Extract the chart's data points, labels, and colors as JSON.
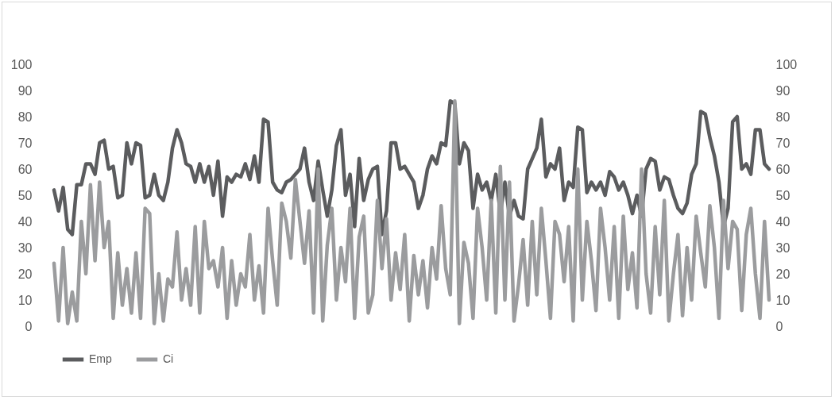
{
  "chart_data": {
    "type": "line",
    "categories": [
      null,
      null,
      null,
      null,
      null,
      null,
      null,
      null,
      null,
      null,
      null,
      null,
      null,
      null,
      null,
      null,
      null,
      null,
      null,
      null,
      null,
      null,
      null,
      null,
      null,
      null,
      null,
      null,
      null,
      null,
      null,
      null,
      null,
      null,
      null,
      null,
      null,
      null,
      null,
      null,
      null,
      null,
      null,
      null,
      null,
      null,
      null,
      null,
      null,
      null,
      null,
      null,
      null,
      null,
      null,
      null,
      null,
      null,
      null,
      null,
      null,
      null,
      null,
      null,
      null,
      null,
      null,
      null,
      null,
      null,
      null,
      null,
      null,
      null,
      null,
      null,
      null,
      null,
      null,
      null,
      null,
      null,
      null,
      null,
      null,
      null,
      null,
      null,
      null,
      null,
      null,
      null,
      null,
      null,
      null,
      null,
      null,
      null,
      null,
      null,
      null,
      null,
      null,
      null,
      null,
      null,
      null,
      null,
      null,
      null,
      null,
      null,
      null,
      null,
      null,
      null,
      null,
      null,
      null,
      null,
      null,
      null,
      null,
      null,
      null,
      null,
      null,
      null,
      null,
      null,
      null,
      null,
      null,
      null,
      null,
      null,
      null,
      null,
      null,
      null,
      null,
      null,
      null,
      null,
      null,
      null,
      null,
      null,
      null,
      null,
      null,
      null,
      null,
      null,
      null,
      null,
      null,
      null
    ],
    "series": [
      {
        "name": "Emp",
        "color": "#5b5c5e",
        "values": [
          52,
          44,
          53,
          37,
          35,
          54,
          54,
          62,
          62,
          58,
          70,
          71,
          60,
          61,
          49,
          50,
          70,
          62,
          70,
          69,
          49,
          50,
          58,
          50,
          48,
          55,
          68,
          75,
          70,
          62,
          61,
          55,
          62,
          55,
          61,
          50,
          63,
          42,
          57,
          55,
          58,
          57,
          62,
          56,
          65,
          55,
          79,
          78,
          55,
          52,
          51,
          55,
          56,
          58,
          60,
          68,
          55,
          48,
          63,
          52,
          42,
          52,
          69,
          75,
          50,
          58,
          38,
          64,
          48,
          56,
          60,
          61,
          35,
          44,
          70,
          70,
          60,
          61,
          58,
          55,
          45,
          50,
          60,
          65,
          62,
          70,
          69,
          86,
          85,
          62,
          70,
          67,
          45,
          58,
          52,
          55,
          48,
          58,
          43,
          55,
          42,
          48,
          42,
          41,
          60,
          64,
          68,
          79,
          57,
          62,
          60,
          68,
          48,
          55,
          53,
          76,
          75,
          51,
          55,
          52,
          55,
          50,
          59,
          57,
          52,
          55,
          50,
          43,
          50,
          42,
          60,
          64,
          63,
          52,
          57,
          56,
          50,
          45,
          43,
          47,
          58,
          62,
          82,
          81,
          72,
          65,
          55,
          38,
          45,
          78,
          80,
          60,
          62,
          58,
          75,
          75,
          62,
          60
        ]
      },
      {
        "name": "Ci",
        "color": "#9b9c9e",
        "values": [
          24,
          2,
          30,
          1,
          13,
          2,
          40,
          20,
          54,
          25,
          55,
          30,
          40,
          3,
          28,
          8,
          22,
          5,
          28,
          3,
          45,
          43,
          1,
          20,
          2,
          18,
          15,
          36,
          10,
          22,
          8,
          38,
          5,
          40,
          22,
          25,
          15,
          30,
          3,
          25,
          8,
          20,
          15,
          35,
          10,
          23,
          5,
          45,
          25,
          8,
          47,
          40,
          26,
          56,
          40,
          24,
          44,
          5,
          60,
          2,
          31,
          45,
          10,
          30,
          17,
          45,
          3,
          34,
          42,
          5,
          12,
          48,
          22,
          41,
          10,
          28,
          14,
          35,
          2,
          27,
          12,
          25,
          7,
          30,
          18,
          46,
          22,
          12,
          86,
          1,
          32,
          24,
          3,
          45,
          30,
          10,
          48,
          5,
          61,
          10,
          55,
          2,
          16,
          33,
          8,
          40,
          12,
          45,
          25,
          3,
          40,
          35,
          17,
          38,
          2,
          60,
          10,
          40,
          25,
          6,
          45,
          30,
          10,
          38,
          3,
          42,
          14,
          28,
          7,
          60,
          20,
          5,
          38,
          12,
          48,
          2,
          20,
          35,
          4,
          30,
          10,
          42,
          28,
          15,
          46,
          30,
          3,
          48,
          22,
          40,
          37,
          6,
          35,
          45,
          20,
          3,
          40,
          10
        ]
      }
    ],
    "ylim": [
      0,
      100
    ],
    "yticks": [
      0,
      10,
      20,
      30,
      40,
      50,
      60,
      70,
      80,
      90,
      100
    ],
    "y2lim": [
      0,
      100
    ],
    "y2ticks": [
      0,
      10,
      20,
      30,
      40,
      50,
      60,
      70,
      80,
      90,
      100
    ],
    "legend": "bottom",
    "grid": false,
    "line_style": "solid"
  }
}
